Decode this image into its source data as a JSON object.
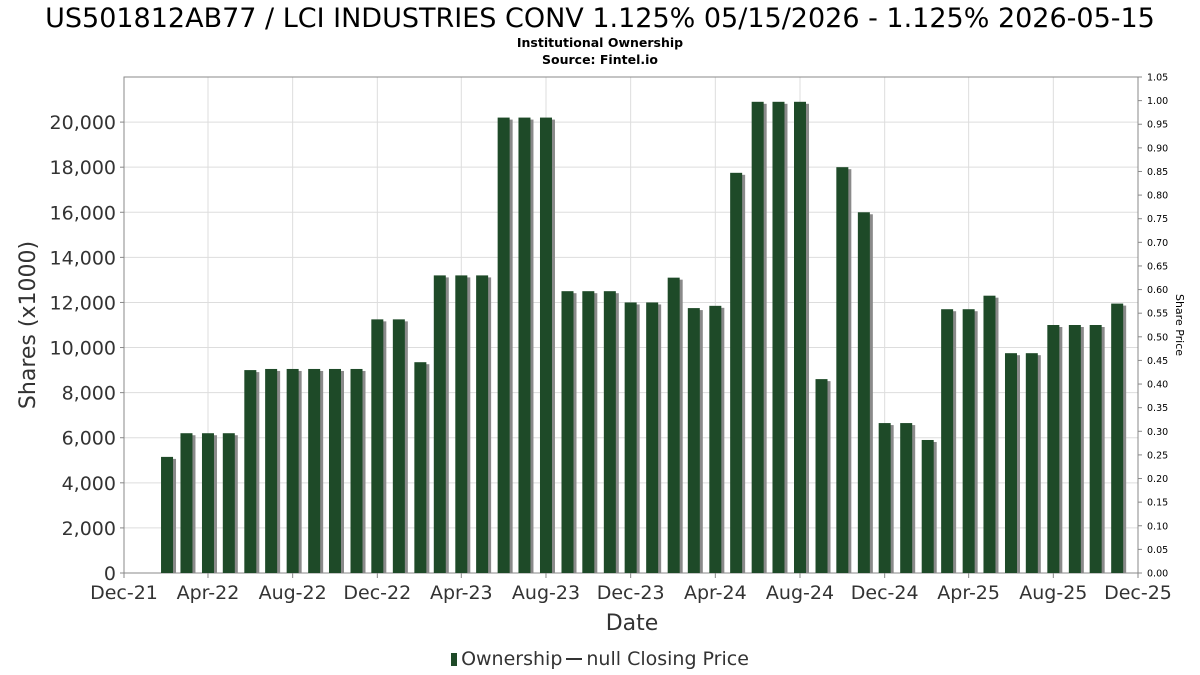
{
  "chart_data": {
    "type": "bar",
    "title": "US501812AB77 / LCI INDUSTRIES CONV 1.125% 05/15/2026 - 1.125% 2026-05-15",
    "subtitle": "Institutional Ownership",
    "source": "Source: Fintel.io",
    "xlabel": "Date",
    "ylabel": "Shares (x1000)",
    "y2label": "Share Price",
    "xlim": [
      "2021-12-01",
      "2025-12-01"
    ],
    "ylim": [
      0,
      22000
    ],
    "y2lim": [
      0,
      1.05
    ],
    "y_ticks": [
      0,
      2000,
      4000,
      6000,
      8000,
      10000,
      12000,
      14000,
      16000,
      18000,
      20000
    ],
    "y_tick_labels": [
      "0",
      "2,000",
      "4,000",
      "6,000",
      "8,000",
      "10,000",
      "12,000",
      "14,000",
      "16,000",
      "18,000",
      "20,000"
    ],
    "y2_tick_labels": [
      "0.00",
      "0.05",
      "0.10",
      "0.15",
      "0.20",
      "0.25",
      "0.30",
      "0.35",
      "0.40",
      "0.45",
      "0.50",
      "0.55",
      "0.60",
      "0.65",
      "0.70",
      "0.75",
      "0.80",
      "0.85",
      "0.90",
      "0.95",
      "1.00",
      "1.05"
    ],
    "x_ticks": [
      {
        "date": "2021-12-01",
        "label": "Dec-21"
      },
      {
        "date": "2022-04-01",
        "label": "Apr-22"
      },
      {
        "date": "2022-08-01",
        "label": "Aug-22"
      },
      {
        "date": "2022-12-01",
        "label": "Dec-22"
      },
      {
        "date": "2023-04-01",
        "label": "Apr-23"
      },
      {
        "date": "2023-08-01",
        "label": "Aug-23"
      },
      {
        "date": "2023-12-01",
        "label": "Dec-23"
      },
      {
        "date": "2024-04-01",
        "label": "Apr-24"
      },
      {
        "date": "2024-08-01",
        "label": "Aug-24"
      },
      {
        "date": "2024-12-01",
        "label": "Dec-24"
      },
      {
        "date": "2025-04-01",
        "label": "Apr-25"
      },
      {
        "date": "2025-08-01",
        "label": "Aug-25"
      },
      {
        "date": "2025-12-01",
        "label": "Dec-25"
      }
    ],
    "grid": true,
    "legend_position": "bottom",
    "series": [
      {
        "name": "Ownership",
        "color": "#1e4a28",
        "x": [
          "2022-02-01",
          "2022-03-01",
          "2022-04-01",
          "2022-05-01",
          "2022-06-01",
          "2022-07-01",
          "2022-08-01",
          "2022-09-01",
          "2022-10-01",
          "2022-11-01",
          "2022-12-01",
          "2023-01-01",
          "2023-02-01",
          "2023-03-01",
          "2023-04-01",
          "2023-05-01",
          "2023-06-01",
          "2023-07-01",
          "2023-08-01",
          "2023-09-01",
          "2023-10-01",
          "2023-11-01",
          "2023-12-01",
          "2024-01-01",
          "2024-02-01",
          "2024-03-01",
          "2024-04-01",
          "2024-05-01",
          "2024-06-01",
          "2024-07-01",
          "2024-08-01",
          "2024-09-01",
          "2024-10-01",
          "2024-11-01",
          "2024-12-01",
          "2025-01-01",
          "2025-02-01",
          "2025-03-01",
          "2025-04-01",
          "2025-05-01",
          "2025-06-01",
          "2025-07-01",
          "2025-08-01",
          "2025-09-01",
          "2025-10-01",
          "2025-11-01"
        ],
        "values": [
          5150,
          6200,
          6200,
          6200,
          9000,
          9050,
          9050,
          9050,
          9050,
          9050,
          11250,
          11250,
          9350,
          13200,
          13200,
          13200,
          20200,
          20200,
          20200,
          12500,
          12500,
          12500,
          12000,
          12000,
          13100,
          11750,
          11850,
          17750,
          20900,
          20900,
          20900,
          8600,
          18000,
          16000,
          6650,
          6650,
          5900,
          11700,
          11700,
          12300,
          9750,
          9750,
          11000,
          11000,
          11000,
          11950
        ]
      }
    ],
    "legend": {
      "ownership_label": "Ownership",
      "price_label": "null Closing Price"
    }
  }
}
